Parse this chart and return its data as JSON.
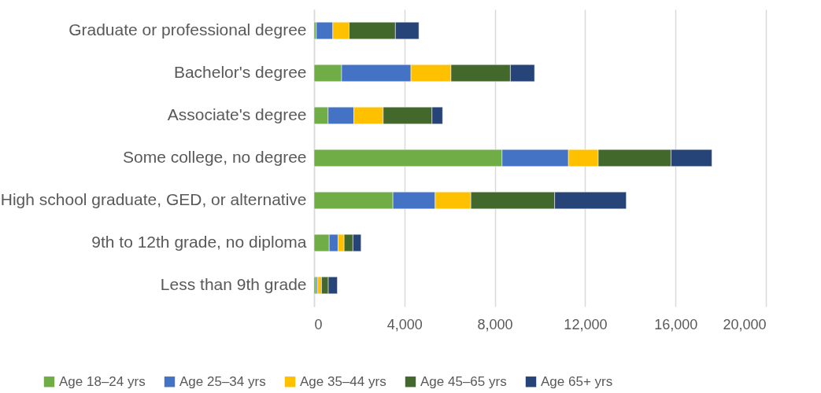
{
  "chart_data": {
    "type": "bar",
    "orientation": "horizontal",
    "stacked": true,
    "categories": [
      "Graduate or professional degree",
      "Bachelor's degree",
      "Associate's degree",
      "Some college, no degree",
      "High school graduate, GED, or alternative",
      "9th to 12th grade, no diploma",
      "Less than 9th grade"
    ],
    "series": [
      {
        "name": "Age 18–24 yrs",
        "color": "#70ad47",
        "values": [
          100,
          1220,
          620,
          8320,
          3490,
          670,
          100
        ]
      },
      {
        "name": "Age 25–34 yrs",
        "color": "#4472c4",
        "values": [
          730,
          3070,
          1140,
          2940,
          1870,
          390,
          60
        ]
      },
      {
        "name": "Age 35–44 yrs",
        "color": "#ffc000",
        "values": [
          720,
          1770,
          1300,
          1320,
          1580,
          270,
          170
        ]
      },
      {
        "name": "Age 45–65 yrs",
        "color": "#43682b",
        "values": [
          2050,
          2630,
          2160,
          3220,
          3710,
          390,
          300
        ]
      },
      {
        "name": "Age 65+ yrs",
        "color": "#264478",
        "values": [
          1040,
          1070,
          470,
          1810,
          3170,
          360,
          400
        ]
      }
    ],
    "xlim": [
      0,
      20000
    ],
    "xticks": [
      {
        "value": 0,
        "label": "0"
      },
      {
        "value": 4000,
        "label": "4,000"
      },
      {
        "value": 8000,
        "label": "8,000"
      },
      {
        "value": 12000,
        "label": "12,000"
      },
      {
        "value": 16000,
        "label": "16,000"
      },
      {
        "value": 20000,
        "label": "20,000"
      }
    ],
    "grid": "x",
    "legend": "bottom"
  }
}
